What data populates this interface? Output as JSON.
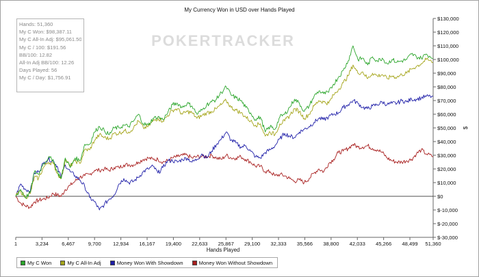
{
  "chart_data": {
    "type": "line",
    "title": "My Currency Won in USD over Hands Played",
    "xlabel": "Hands Played",
    "ylabel": "$",
    "xlim": [
      1,
      51360
    ],
    "ylim": [
      -30000,
      130000
    ],
    "x_ticks": [
      "1",
      "3,234",
      "6,467",
      "9,700",
      "12,934",
      "16,167",
      "19,400",
      "22,633",
      "25,867",
      "29,100",
      "32,333",
      "35,566",
      "38,800",
      "42,033",
      "45,266",
      "48,499",
      "51,360"
    ],
    "x_tick_values": [
      1,
      3234,
      6467,
      9700,
      12934,
      16167,
      19400,
      22633,
      25867,
      29100,
      32333,
      35566,
      38800,
      42033,
      45266,
      48499,
      51360
    ],
    "y_ticks": [
      "$-30,000",
      "$-20,000",
      "$-10,000",
      "$0",
      "$10,000",
      "$20,000",
      "$30,000",
      "$40,000",
      "$50,000",
      "$60,000",
      "$70,000",
      "$80,000",
      "$90,000",
      "$100,000",
      "$110,000",
      "$120,000",
      "$130,000"
    ],
    "y_tick_values": [
      -30000,
      -20000,
      -10000,
      0,
      10000,
      20000,
      30000,
      40000,
      50000,
      60000,
      70000,
      80000,
      90000,
      100000,
      110000,
      120000,
      130000
    ],
    "watermark": "POKERTRACKER",
    "grid": false,
    "legend_position": "bottom",
    "series": [
      {
        "name": "My C Won",
        "color": "#2aa52a",
        "x": [
          1,
          600,
          1200,
          1800,
          2300,
          2800,
          3400,
          4000,
          4600,
          5100,
          5600,
          6100,
          6700,
          7300,
          7900,
          8500,
          9100,
          9700,
          10300,
          10900,
          11500,
          12100,
          12700,
          13300,
          13900,
          14500,
          15100,
          15700,
          16300,
          16900,
          17500,
          18100,
          18700,
          19300,
          19900,
          20500,
          21100,
          21700,
          22300,
          22900,
          23500,
          24100,
          24700,
          25300,
          25900,
          26500,
          27100,
          27700,
          28300,
          28900,
          29500,
          30100,
          30700,
          31300,
          31900,
          32500,
          33100,
          33700,
          34300,
          34900,
          35500,
          36100,
          36700,
          37300,
          37900,
          38500,
          39100,
          39700,
          40300,
          40900,
          41500,
          42100,
          42700,
          43300,
          43900,
          44500,
          45100,
          45700,
          46300,
          46900,
          47500,
          48100,
          48700,
          49300,
          49900,
          50500,
          51360
        ],
        "y": [
          0,
          5000,
          -1000,
          3000,
          18000,
          16000,
          24000,
          28000,
          27000,
          18000,
          13000,
          28000,
          21000,
          28000,
          26000,
          38000,
          38000,
          47000,
          51000,
          48000,
          45000,
          50000,
          50000,
          52000,
          51000,
          55000,
          60000,
          53000,
          52000,
          57000,
          58000,
          56000,
          61000,
          67000,
          68000,
          65000,
          68000,
          66000,
          60000,
          63000,
          67000,
          69000,
          71000,
          76000,
          80000,
          74000,
          72000,
          70000,
          65000,
          61000,
          56000,
          58000,
          47000,
          51000,
          49000,
          58000,
          60000,
          65000,
          71000,
          68000,
          62000,
          66000,
          73000,
          77000,
          75000,
          76000,
          82000,
          87000,
          92000,
          99000,
          110000,
          100000,
          101000,
          96000,
          102000,
          99000,
          101000,
          97000,
          100000,
          98000,
          99000,
          100000,
          104000,
          102000,
          101000,
          104000,
          101000
        ]
      },
      {
        "name": "My C All-In Adj",
        "color": "#a5a51a",
        "x": [
          1,
          600,
          1200,
          1800,
          2300,
          2800,
          3400,
          4000,
          4600,
          5100,
          5600,
          6100,
          6700,
          7300,
          7900,
          8500,
          9100,
          9700,
          10300,
          10900,
          11500,
          12100,
          12700,
          13300,
          13900,
          14500,
          15100,
          15700,
          16300,
          16900,
          17500,
          18100,
          18700,
          19300,
          19900,
          20500,
          21100,
          21700,
          22300,
          22900,
          23500,
          24100,
          24700,
          25300,
          25900,
          26500,
          27100,
          27700,
          28300,
          28900,
          29500,
          30100,
          30700,
          31300,
          31900,
          32500,
          33100,
          33700,
          34300,
          34900,
          35500,
          36100,
          36700,
          37300,
          37900,
          38500,
          39100,
          39700,
          40300,
          40900,
          41500,
          42100,
          42700,
          43300,
          43900,
          44500,
          45100,
          45700,
          46300,
          46900,
          47500,
          48100,
          48700,
          49300,
          49900,
          50500,
          51360
        ],
        "y": [
          0,
          4000,
          -1000,
          2000,
          14000,
          13000,
          21000,
          25000,
          24000,
          17000,
          13000,
          27000,
          22000,
          26000,
          24000,
          34000,
          34000,
          41000,
          45000,
          43000,
          42000,
          46000,
          46000,
          48000,
          47000,
          50000,
          55000,
          50000,
          51000,
          55000,
          57000,
          55000,
          59000,
          63000,
          64000,
          60000,
          62000,
          61000,
          57000,
          59000,
          61000,
          62000,
          64000,
          67000,
          70000,
          65000,
          63000,
          61000,
          58000,
          55000,
          52000,
          53000,
          44000,
          47000,
          45000,
          53000,
          55000,
          59000,
          64000,
          62000,
          57000,
          60000,
          66000,
          70000,
          69000,
          68000,
          74000,
          78000,
          83000,
          88000,
          96000,
          90000,
          91000,
          86000,
          90000,
          88000,
          89000,
          86000,
          88000,
          87000,
          89000,
          90000,
          93000,
          95000,
          97000,
          100000,
          98000
        ]
      },
      {
        "name": "Money Won With Showdown",
        "color": "#1e1ea8",
        "x": [
          1,
          600,
          1200,
          1800,
          2300,
          2800,
          3400,
          4000,
          4600,
          5100,
          5600,
          6100,
          6700,
          7300,
          7900,
          8500,
          9100,
          9700,
          10300,
          10900,
          11500,
          12100,
          12700,
          13300,
          13900,
          14500,
          15100,
          15700,
          16300,
          16900,
          17500,
          18100,
          18700,
          19300,
          19900,
          20500,
          21100,
          21700,
          22300,
          22900,
          23500,
          24100,
          24700,
          25300,
          25900,
          26500,
          27100,
          27700,
          28300,
          28900,
          29500,
          30100,
          30700,
          31300,
          31900,
          32500,
          33100,
          33700,
          34300,
          34900,
          35500,
          36100,
          36700,
          37300,
          37900,
          38500,
          39100,
          39700,
          40300,
          40900,
          41500,
          42100,
          42700,
          43300,
          43900,
          44500,
          45100,
          45700,
          46300,
          46900,
          47500,
          48100,
          48700,
          49300,
          49900,
          50500,
          51360
        ],
        "y": [
          0,
          9000,
          5000,
          4000,
          17000,
          18000,
          24000,
          27000,
          26000,
          22000,
          14000,
          23000,
          18000,
          15000,
          12000,
          7000,
          -1000,
          -4000,
          -10000,
          -6000,
          -2000,
          1000,
          9000,
          13000,
          10000,
          11000,
          14000,
          18000,
          20000,
          22000,
          17000,
          21000,
          26000,
          26000,
          25000,
          27000,
          28000,
          25000,
          27000,
          31000,
          28000,
          33000,
          38000,
          42000,
          47000,
          41000,
          39000,
          36000,
          37000,
          33000,
          29000,
          28000,
          32000,
          34000,
          37000,
          42000,
          46000,
          44000,
          43000,
          47000,
          49000,
          51000,
          54000,
          57000,
          56000,
          58000,
          60000,
          61000,
          65000,
          67000,
          70000,
          68000,
          65000,
          64000,
          66000,
          67000,
          69000,
          67000,
          68000,
          68000,
          70000,
          69000,
          71000,
          71000,
          72000,
          73000,
          73000
        ]
      },
      {
        "name": "Money Won Without Showdown",
        "color": "#a81e1e",
        "x": [
          1,
          600,
          1200,
          1800,
          2300,
          2800,
          3400,
          4000,
          4600,
          5100,
          5600,
          6100,
          6700,
          7300,
          7900,
          8500,
          9100,
          9700,
          10300,
          10900,
          11500,
          12100,
          12700,
          13300,
          13900,
          14500,
          15100,
          15700,
          16300,
          16900,
          17500,
          18100,
          18700,
          19300,
          19900,
          20500,
          21100,
          21700,
          22300,
          22900,
          23500,
          24100,
          24700,
          25300,
          25900,
          26500,
          27100,
          27700,
          28300,
          28900,
          29500,
          30100,
          30700,
          31300,
          31900,
          32500,
          33100,
          33700,
          34300,
          34900,
          35500,
          36100,
          36700,
          37300,
          37900,
          38500,
          39100,
          39700,
          40300,
          40900,
          41500,
          42100,
          42700,
          43300,
          43900,
          44500,
          45100,
          45700,
          46300,
          46900,
          47500,
          48100,
          48700,
          49300,
          49900,
          50500,
          51360
        ],
        "y": [
          0,
          -5000,
          -7000,
          -8000,
          -4000,
          -3000,
          -2000,
          -1000,
          2000,
          1000,
          0,
          5000,
          8000,
          11000,
          14000,
          15000,
          16000,
          19000,
          19000,
          20000,
          19000,
          21000,
          21000,
          23000,
          23000,
          23000,
          25000,
          27000,
          28000,
          27000,
          27000,
          25000,
          26000,
          28000,
          29000,
          30000,
          30000,
          28000,
          29000,
          29000,
          29000,
          30000,
          28000,
          27000,
          30000,
          28000,
          28000,
          29000,
          27000,
          25000,
          22000,
          22000,
          18000,
          18000,
          15000,
          16000,
          15000,
          13000,
          11000,
          12000,
          10000,
          13000,
          17000,
          20000,
          18000,
          24000,
          27000,
          32000,
          33000,
          35000,
          38000,
          36000,
          36000,
          37000,
          35000,
          34000,
          32000,
          28000,
          26000,
          25000,
          25000,
          26000,
          27000,
          31000,
          34000,
          31000,
          29000
        ]
      }
    ]
  },
  "stats": [
    "Hands: 51,360",
    "My C Won: $98,387.11",
    "My C All-In Adj: $95,061.50",
    "My C / 100: $191.56",
    "BB/100: 12.82",
    "All-In Adj BB/100: 12.26",
    "Days Played: 56",
    "My C / Day: $1,756.91"
  ]
}
